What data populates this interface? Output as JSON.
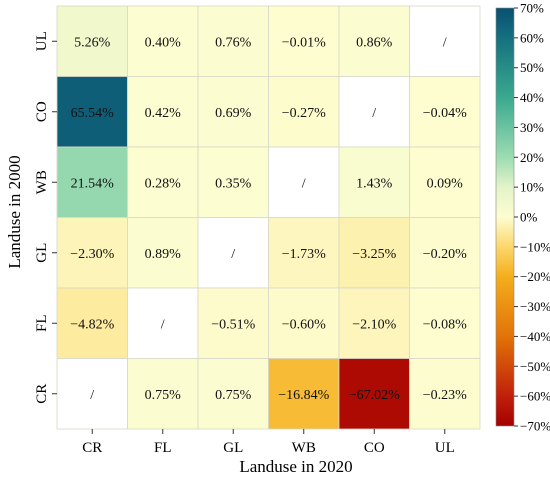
{
  "chart_data": {
    "type": "heatmap",
    "title": "",
    "xlabel": "Landuse in 2020",
    "ylabel": "Landuse in 2000",
    "x_categories": [
      "CR",
      "FL",
      "GL",
      "WB",
      "CO",
      "UL"
    ],
    "y_categories": [
      "UL",
      "CO",
      "WB",
      "GL",
      "FL",
      "CR"
    ],
    "values": [
      [
        5.26,
        0.4,
        0.76,
        -0.01,
        0.86,
        null
      ],
      [
        65.54,
        0.42,
        0.69,
        -0.27,
        null,
        -0.04
      ],
      [
        21.54,
        0.28,
        0.35,
        null,
        1.43,
        0.09
      ],
      [
        -2.3,
        0.89,
        null,
        -1.73,
        -3.25,
        -0.2
      ],
      [
        -4.82,
        null,
        -0.51,
        -0.6,
        -2.1,
        -0.08
      ],
      [
        null,
        0.75,
        0.75,
        -16.84,
        -67.02,
        -0.23
      ]
    ],
    "labels": [
      [
        "5.26%",
        "0.40%",
        "0.76%",
        "−0.01%",
        "0.86%",
        "/"
      ],
      [
        "65.54%",
        "0.42%",
        "0.69%",
        "−0.27%",
        "/",
        "−0.04%"
      ],
      [
        "21.54%",
        "0.28%",
        "0.35%",
        "/",
        "1.43%",
        "0.09%"
      ],
      [
        "−2.30%",
        "0.89%",
        "/",
        "−1.73%",
        "−3.25%",
        "−0.20%"
      ],
      [
        "−4.82%",
        "/",
        "−0.51%",
        "−0.60%",
        "−2.10%",
        "−0.08%"
      ],
      [
        "/",
        "0.75%",
        "0.75%",
        "−16.84%",
        "−67.02%",
        "−0.23%"
      ]
    ],
    "colorbar": {
      "range": [
        -70,
        70
      ],
      "tick_values": [
        70,
        60,
        50,
        40,
        30,
        20,
        10,
        0,
        -10,
        -20,
        -30,
        -40,
        -50,
        -60,
        -70
      ],
      "tick_labels": [
        "70%",
        "60%",
        "50%",
        "40%",
        "30%",
        "20%",
        "10%",
        "0%",
        "−10%",
        "−20%",
        "−30%",
        "−40%",
        "−50%",
        "−60%",
        "−70%"
      ],
      "colormap": {
        "stops": [
          -70,
          -60,
          -40,
          -20,
          -10,
          0,
          10,
          20,
          40,
          60,
          70
        ],
        "colors": [
          "#a50000",
          "#c0200b",
          "#e27308",
          "#f4ae1c",
          "#fcd76b",
          "#fdfdd0",
          "#e4f3c9",
          "#9ddcb2",
          "#3aa98f",
          "#15707f",
          "#0a4f72"
        ]
      }
    },
    "grid": true
  }
}
